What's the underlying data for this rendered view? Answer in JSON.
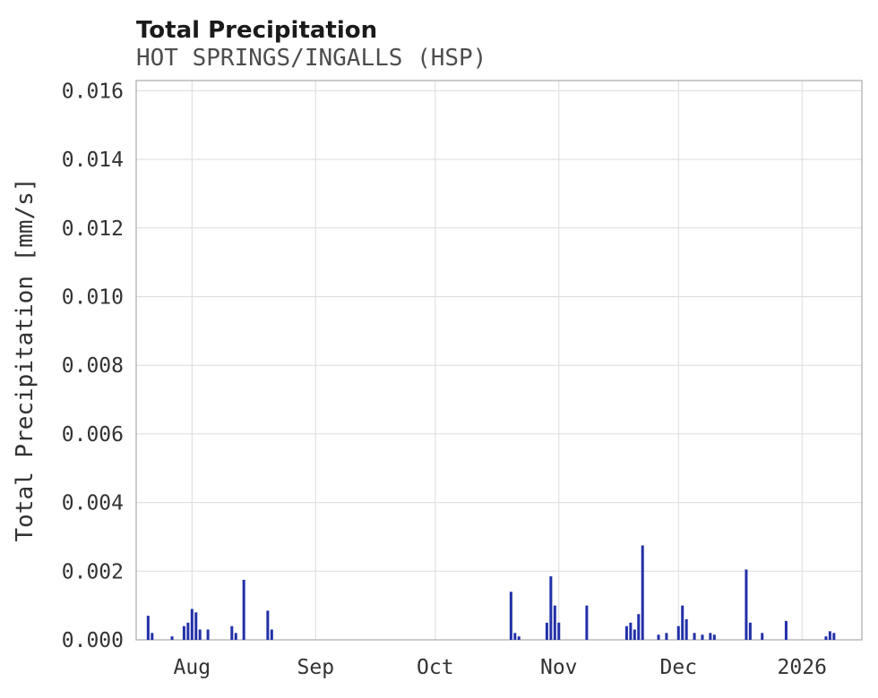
{
  "chart_data": {
    "type": "bar",
    "title": "Total Precipitation",
    "subtitle": "HOT SPRINGS/INGALLS (HSP)",
    "xlabel": "",
    "ylabel": "Total Precipitation [mm/s]",
    "ylim": [
      0,
      0.016
    ],
    "grid": true,
    "legend": false,
    "bar_color": "#2230a8",
    "grid_color": "#dcdcdc",
    "border_color": "#aaaaaa",
    "x_domain": [
      "2025-07-18",
      "2026-01-16"
    ],
    "y_ticks": [
      {
        "value": 0.0,
        "label": "0.000"
      },
      {
        "value": 0.002,
        "label": "0.002"
      },
      {
        "value": 0.004,
        "label": "0.004"
      },
      {
        "value": 0.006,
        "label": "0.006"
      },
      {
        "value": 0.008,
        "label": "0.008"
      },
      {
        "value": 0.01,
        "label": "0.010"
      },
      {
        "value": 0.012,
        "label": "0.012"
      },
      {
        "value": 0.014,
        "label": "0.014"
      },
      {
        "value": 0.016,
        "label": "0.016"
      }
    ],
    "x_ticks": [
      {
        "date": "2025-08-01",
        "label": "Aug"
      },
      {
        "date": "2025-09-01",
        "label": "Sep"
      },
      {
        "date": "2025-10-01",
        "label": "Oct"
      },
      {
        "date": "2025-11-01",
        "label": "Nov"
      },
      {
        "date": "2025-12-01",
        "label": "Dec"
      },
      {
        "date": "2026-01-01",
        "label": "2026"
      }
    ],
    "points": [
      {
        "date": "2025-07-21",
        "value": 0.0007
      },
      {
        "date": "2025-07-22",
        "value": 0.0002
      },
      {
        "date": "2025-07-27",
        "value": 0.0001
      },
      {
        "date": "2025-07-30",
        "value": 0.0004
      },
      {
        "date": "2025-07-31",
        "value": 0.0005
      },
      {
        "date": "2025-08-01",
        "value": 0.0009
      },
      {
        "date": "2025-08-02",
        "value": 0.0008
      },
      {
        "date": "2025-08-03",
        "value": 0.0003
      },
      {
        "date": "2025-08-05",
        "value": 0.0003
      },
      {
        "date": "2025-08-11",
        "value": 0.0004
      },
      {
        "date": "2025-08-12",
        "value": 0.0002
      },
      {
        "date": "2025-08-14",
        "value": 0.00175
      },
      {
        "date": "2025-08-20",
        "value": 0.00085
      },
      {
        "date": "2025-08-21",
        "value": 0.0003
      },
      {
        "date": "2025-10-20",
        "value": 0.0014
      },
      {
        "date": "2025-10-21",
        "value": 0.0002
      },
      {
        "date": "2025-10-22",
        "value": 0.0001
      },
      {
        "date": "2025-10-29",
        "value": 0.0005
      },
      {
        "date": "2025-10-30",
        "value": 0.00185
      },
      {
        "date": "2025-10-31",
        "value": 0.001
      },
      {
        "date": "2025-11-01",
        "value": 0.0005
      },
      {
        "date": "2025-11-08",
        "value": 0.001
      },
      {
        "date": "2025-11-18",
        "value": 0.0004
      },
      {
        "date": "2025-11-19",
        "value": 0.0005
      },
      {
        "date": "2025-11-20",
        "value": 0.0003
      },
      {
        "date": "2025-11-21",
        "value": 0.00075
      },
      {
        "date": "2025-11-22",
        "value": 0.00275
      },
      {
        "date": "2025-11-26",
        "value": 0.00015
      },
      {
        "date": "2025-11-28",
        "value": 0.0002
      },
      {
        "date": "2025-12-01",
        "value": 0.0004
      },
      {
        "date": "2025-12-02",
        "value": 0.001
      },
      {
        "date": "2025-12-03",
        "value": 0.0006
      },
      {
        "date": "2025-12-05",
        "value": 0.0002
      },
      {
        "date": "2025-12-07",
        "value": 0.00015
      },
      {
        "date": "2025-12-09",
        "value": 0.0002
      },
      {
        "date": "2025-12-10",
        "value": 0.00015
      },
      {
        "date": "2025-12-18",
        "value": 0.00205
      },
      {
        "date": "2025-12-19",
        "value": 0.0005
      },
      {
        "date": "2025-12-22",
        "value": 0.0002
      },
      {
        "date": "2025-12-28",
        "value": 0.00055
      },
      {
        "date": "2026-01-07",
        "value": 0.0001
      },
      {
        "date": "2026-01-08",
        "value": 0.00025
      },
      {
        "date": "2026-01-09",
        "value": 0.0002
      }
    ]
  }
}
